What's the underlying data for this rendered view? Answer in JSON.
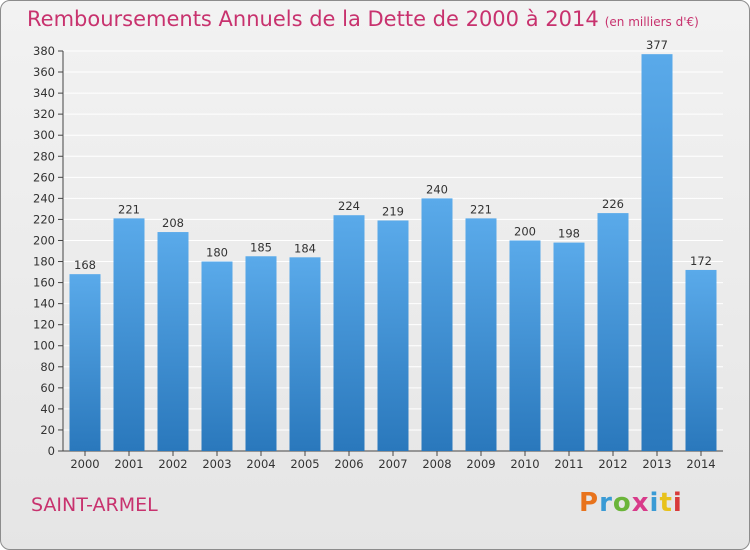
{
  "title": {
    "main": "Remboursements Annuels de la Dette de 2000 à 2014",
    "unit": "(en milliers d'€)"
  },
  "commune": "SAINT-ARMEL",
  "logo": {
    "text": "Proxiti",
    "colors": [
      "#e8731c",
      "#3a9bd5",
      "#6bb53a",
      "#d83a8a",
      "#3a9bd5",
      "#e8c21c",
      "#d83a3a"
    ]
  },
  "colors": {
    "title": "#c8326e",
    "bar_light": "#5aaaea",
    "bar_dark": "#2a78bc",
    "grid": "#ffffff",
    "axis": "#444444"
  },
  "chart_data": {
    "type": "bar",
    "categories": [
      "2000",
      "2001",
      "2002",
      "2003",
      "2004",
      "2005",
      "2006",
      "2007",
      "2008",
      "2009",
      "2010",
      "2011",
      "2012",
      "2013",
      "2014"
    ],
    "values": [
      168,
      221,
      208,
      180,
      185,
      184,
      224,
      219,
      240,
      221,
      200,
      198,
      226,
      377,
      172
    ],
    "ylim": [
      0,
      380
    ],
    "ytick_step": 20,
    "grid": true,
    "legend": "none"
  }
}
